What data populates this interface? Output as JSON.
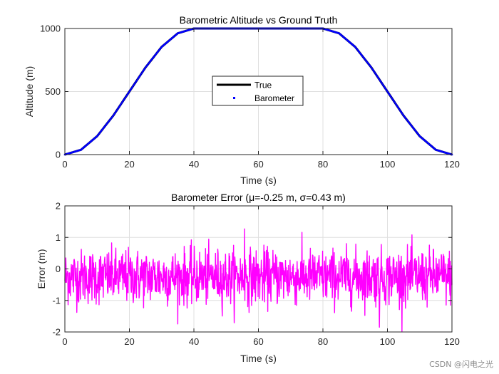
{
  "chart_data": [
    {
      "type": "line",
      "title": "Barometric Altitude vs Ground Truth",
      "xlabel": "Time (s)",
      "ylabel": "Altitude (m)",
      "xlim": [
        0,
        120
      ],
      "ylim": [
        0,
        1000
      ],
      "xticks": [
        0,
        20,
        40,
        60,
        80,
        100,
        120
      ],
      "yticks": [
        0,
        500,
        1000
      ],
      "grid": true,
      "legend_position": "center",
      "series": [
        {
          "name": "True",
          "style": "line",
          "color": "#000000",
          "x": [
            0,
            5,
            10,
            15,
            20,
            25,
            30,
            35,
            40,
            45,
            50,
            55,
            60,
            65,
            70,
            75,
            80,
            85,
            90,
            95,
            100,
            105,
            110,
            115,
            120
          ],
          "y": [
            0,
            38,
            146,
            309,
            500,
            691,
            854,
            962,
            1000,
            1000,
            1000,
            1000,
            1000,
            1000,
            1000,
            1000,
            1000,
            962,
            854,
            691,
            500,
            309,
            146,
            38,
            0
          ]
        },
        {
          "name": "Barometer",
          "style": "markers",
          "color": "#0000ff",
          "x": [
            0,
            5,
            10,
            15,
            20,
            25,
            30,
            35,
            40,
            45,
            50,
            55,
            60,
            65,
            70,
            75,
            80,
            85,
            90,
            95,
            100,
            105,
            110,
            115,
            120
          ],
          "y": [
            0,
            38,
            146,
            309,
            500,
            691,
            854,
            962,
            1000,
            1000,
            1000,
            1000,
            1000,
            1000,
            1000,
            1000,
            1000,
            962,
            854,
            691,
            500,
            309,
            146,
            38,
            0
          ]
        }
      ]
    },
    {
      "type": "line",
      "title": "Barometer Error (μ=-0.25 m, σ=0.43 m)",
      "xlabel": "Time (s)",
      "ylabel": "Error (m)",
      "xlim": [
        0,
        120
      ],
      "ylim": [
        -2,
        2
      ],
      "xticks": [
        0,
        20,
        40,
        60,
        80,
        100,
        120
      ],
      "yticks": [
        -2,
        -1,
        0,
        1,
        2
      ],
      "grid": true,
      "series": [
        {
          "color": "#ff00ff",
          "mean": -0.25,
          "std": 0.43,
          "dx": 0.1,
          "peaks": [
            [
              55.7,
              1.27
            ],
            [
              107.6,
              1.08
            ],
            [
              97.5,
              -1.85
            ]
          ]
        }
      ]
    }
  ],
  "watermark": "CSDN @闪电之光"
}
